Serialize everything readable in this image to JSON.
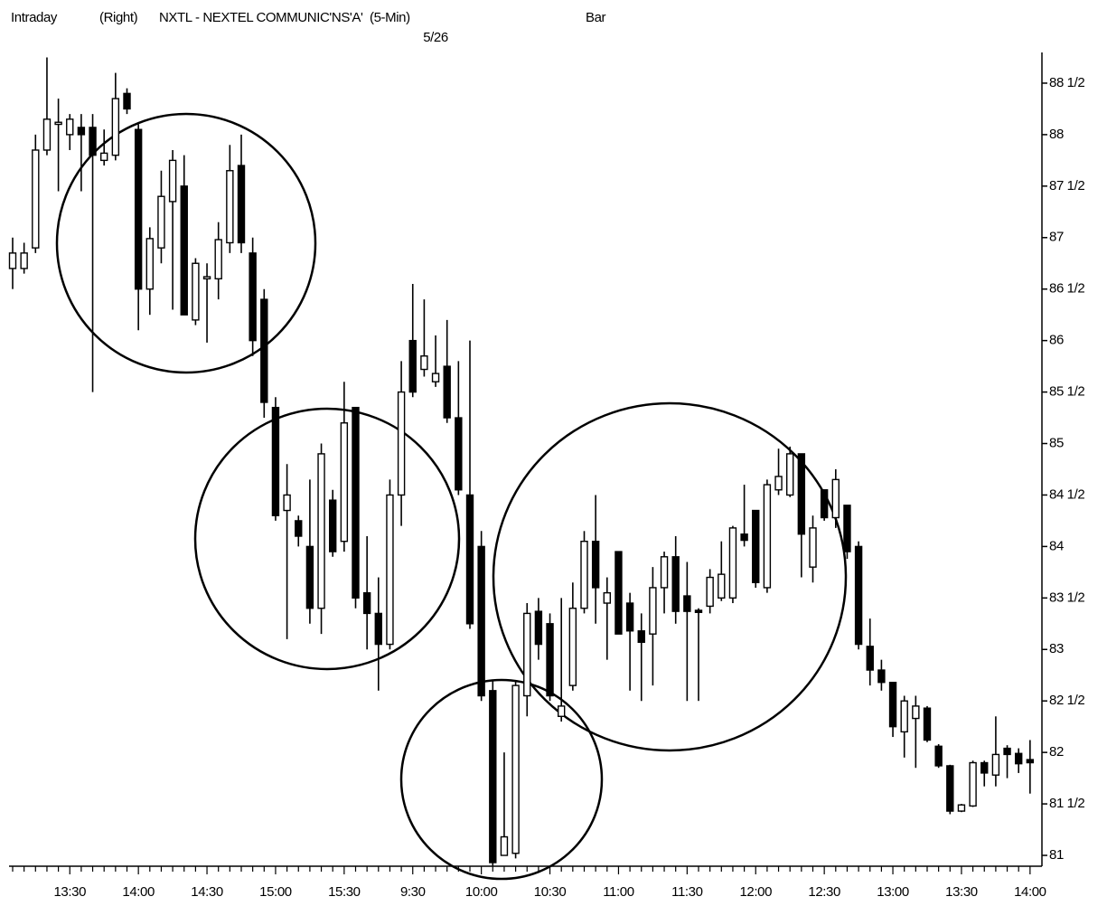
{
  "chart_data": {
    "type": "candlestick",
    "mode_label": "Intraday",
    "side_label": "(Right)",
    "title": "NXTL - NEXTEL COMMUNIC'NS'A'  (5-Min)",
    "subtitle": "5/26",
    "style_label": "Bar",
    "categories": [
      null,
      null,
      null,
      null,
      null,
      "13:30",
      null,
      null,
      null,
      null,
      null,
      "14:00",
      null,
      null,
      null,
      null,
      null,
      "14:30",
      null,
      null,
      null,
      null,
      null,
      "15:00",
      null,
      null,
      null,
      null,
      null,
      "15:30",
      null,
      null,
      null,
      null,
      null,
      "9:30",
      null,
      null,
      null,
      null,
      null,
      "10:00",
      null,
      null,
      null,
      null,
      null,
      "10:30",
      null,
      null,
      null,
      null,
      null,
      "11:00",
      null,
      null,
      null,
      null,
      null,
      "11:30",
      null,
      null,
      null,
      null,
      null,
      "12:00",
      null,
      null,
      null,
      null,
      null,
      "12:30",
      null,
      null,
      null,
      null,
      null,
      "13:00",
      null,
      null,
      null,
      null,
      null,
      "13:30",
      null,
      null,
      null,
      null,
      null,
      "14:00"
    ],
    "open": [
      86.7,
      86.7,
      86.9,
      87.85,
      88.1,
      88.0,
      88.07,
      88.07,
      87.75,
      87.8,
      88.4,
      88.05,
      86.5,
      86.9,
      87.35,
      87.5,
      86.2,
      86.6,
      86.6,
      86.95,
      87.7,
      86.85,
      86.4,
      85.35,
      84.35,
      84.25,
      84.0,
      83.4,
      84.45,
      84.05,
      85.35,
      83.55,
      83.35,
      83.05,
      84.5,
      86.0,
      85.72,
      85.6,
      85.75,
      85.25,
      84.5,
      84.0,
      82.6,
      81.0,
      81.02,
      82.55,
      83.37,
      83.25,
      82.35,
      82.65,
      83.4,
      84.05,
      83.45,
      83.95,
      83.45,
      83.18,
      83.15,
      83.6,
      83.9,
      83.52,
      83.38,
      83.42,
      83.5,
      83.5,
      84.12,
      84.35,
      83.6,
      84.55,
      84.5,
      84.9,
      83.8,
      84.55,
      84.28,
      84.4,
      84.0,
      83.03,
      82.8,
      82.68,
      82.2,
      82.33,
      82.43,
      82.06,
      81.87,
      81.43,
      81.48,
      81.9,
      81.78,
      82.04,
      81.99,
      81.93
    ],
    "high": [
      87.0,
      86.95,
      88.0,
      88.75,
      88.35,
      88.2,
      88.2,
      88.2,
      88.05,
      88.6,
      88.45,
      88.1,
      87.1,
      87.65,
      87.85,
      87.8,
      86.8,
      86.75,
      87.15,
      87.9,
      88.0,
      87.0,
      86.5,
      85.45,
      84.8,
      84.3,
      84.65,
      85.0,
      84.55,
      85.6,
      85.35,
      84.1,
      83.7,
      84.65,
      85.8,
      86.55,
      86.4,
      86.05,
      86.2,
      85.8,
      86.0,
      84.15,
      82.7,
      82.0,
      82.7,
      83.45,
      83.5,
      83.35,
      83.5,
      83.65,
      84.15,
      84.5,
      83.7,
      83.95,
      83.55,
      83.35,
      83.8,
      83.95,
      84.1,
      83.85,
      83.4,
      83.78,
      84.05,
      84.2,
      84.6,
      84.35,
      84.65,
      84.95,
      84.97,
      84.9,
      84.3,
      84.55,
      84.75,
      84.4,
      84.05,
      83.3,
      82.9,
      82.68,
      82.55,
      82.55,
      82.45,
      82.08,
      81.88,
      81.5,
      81.92,
      81.92,
      82.35,
      82.07,
      82.04,
      82.12
    ],
    "low": [
      86.5,
      86.65,
      86.85,
      87.8,
      87.45,
      87.85,
      87.45,
      85.5,
      87.7,
      87.75,
      88.2,
      86.1,
      86.25,
      86.75,
      86.3,
      86.25,
      86.15,
      85.98,
      86.4,
      86.85,
      86.85,
      85.85,
      85.25,
      84.25,
      83.1,
      84.0,
      83.25,
      83.15,
      83.9,
      83.95,
      83.4,
      83.0,
      82.6,
      83.0,
      84.2,
      85.45,
      85.65,
      85.55,
      85.2,
      84.5,
      83.2,
      82.5,
      80.9,
      81.0,
      80.97,
      82.35,
      82.9,
      82.5,
      82.3,
      82.6,
      83.35,
      83.25,
      82.9,
      83.15,
      82.6,
      82.5,
      82.65,
      83.35,
      83.25,
      82.5,
      82.5,
      83.35,
      83.47,
      83.45,
      84.0,
      83.6,
      83.55,
      84.5,
      84.48,
      83.7,
      83.65,
      84.25,
      84.18,
      83.88,
      83.0,
      82.65,
      82.6,
      82.15,
      81.95,
      81.85,
      82.1,
      81.85,
      81.4,
      81.42,
      81.47,
      81.67,
      81.67,
      81.75,
      81.8,
      81.6
    ],
    "close": [
      86.85,
      86.85,
      87.85,
      88.15,
      88.12,
      88.15,
      88.0,
      87.8,
      87.82,
      88.35,
      88.25,
      86.5,
      86.99,
      87.4,
      87.75,
      86.25,
      86.75,
      86.62,
      86.98,
      87.65,
      86.95,
      86.0,
      85.4,
      84.3,
      84.5,
      84.1,
      83.4,
      84.9,
      83.95,
      85.2,
      83.5,
      83.35,
      83.05,
      84.5,
      85.5,
      85.5,
      85.85,
      85.68,
      85.25,
      84.55,
      83.25,
      82.55,
      80.93,
      81.18,
      82.65,
      83.35,
      83.05,
      82.55,
      82.45,
      83.4,
      84.05,
      83.6,
      83.55,
      83.15,
      83.18,
      83.07,
      83.6,
      83.9,
      83.37,
      83.37,
      83.36,
      83.7,
      83.73,
      84.18,
      84.06,
      83.65,
      84.6,
      84.68,
      84.9,
      84.12,
      84.18,
      84.28,
      84.65,
      83.95,
      83.05,
      82.8,
      82.68,
      82.25,
      82.5,
      82.45,
      82.12,
      81.87,
      81.43,
      81.49,
      81.9,
      81.8,
      81.98,
      81.98,
      81.89,
      81.9
    ],
    "up_color": "#ffffff",
    "down_color": "#000000",
    "ylim": [
      80.9,
      88.8
    ],
    "yticks": [
      81,
      {
        "value": 81.5,
        "label": "81 1/2"
      },
      82,
      {
        "value": 82.5,
        "label": "82 1/2"
      },
      83,
      {
        "value": 83.5,
        "label": "83 1/2"
      },
      84,
      {
        "value": 84.5,
        "label": "84 1/2"
      },
      85,
      {
        "value": 85.5,
        "label": "85 1/2"
      },
      86,
      {
        "value": 86.5,
        "label": "86 1/2"
      },
      87,
      {
        "value": 87.5,
        "label": "87 1/2"
      },
      88,
      {
        "value": 88.5,
        "label": "88 1/2"
      }
    ],
    "grid": false
  }
}
